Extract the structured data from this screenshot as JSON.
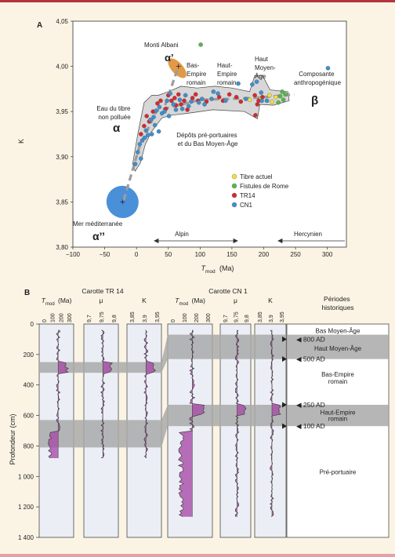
{
  "colors": {
    "page_bg": "#fbf4e5",
    "panel_bg": "#ffffff",
    "purple": "#a64ca6",
    "cyan": "#5ec8dc",
    "gray_band": "#a9a9a9",
    "blue_ellipse": "#4a90d9",
    "orange_ellipse": "#e09a48",
    "dashed": "#a0a0a0",
    "yellow": "#f2e23a",
    "green": "#55b848",
    "red": "#d8272f",
    "blue": "#3f8fd0"
  },
  "panel_a": {
    "label": "A",
    "chart_data": {
      "type": "scatter",
      "xlabel_main": "T",
      "xlabel_sub": "mod",
      "xlabel_unit": "(Ma)",
      "ylabel": "K",
      "xlim": [
        -100,
        330
      ],
      "ylim": [
        3.8,
        4.05
      ],
      "x_ticks": [
        "−100",
        "−50",
        "0",
        "50",
        "100",
        "150",
        "200",
        "250",
        "300"
      ],
      "x_tick_values": [
        -100,
        -50,
        0,
        50,
        100,
        150,
        200,
        250,
        300
      ],
      "y_ticks": [
        "3,80",
        "3,85",
        "3,90",
        "3,95",
        "4,00",
        "4,05"
      ],
      "y_tick_values": [
        3.8,
        3.85,
        3.9,
        3.95,
        4.0,
        4.05
      ],
      "legend": [
        {
          "label": "Tibre actuel",
          "color": "#f2e23a"
        },
        {
          "label": "Fistules de Rome",
          "color": "#55b848"
        },
        {
          "label": "TR14",
          "color": "#d8272f"
        },
        {
          "label": "CN1",
          "color": "#3f8fd0"
        }
      ],
      "series": [
        {
          "name": "Tibre actuel",
          "color": "#f2e23a",
          "points": [
            [
              178,
              3.963
            ],
            [
              196,
              3.965
            ],
            [
              209,
              3.968
            ],
            [
              219,
              3.966
            ],
            [
              213,
              3.961
            ]
          ]
        },
        {
          "name": "Fistules de Rome",
          "color": "#55b848",
          "points": [
            [
              101,
              4.024
            ],
            [
              229,
              3.972
            ],
            [
              234,
              3.969
            ],
            [
              231,
              3.963
            ],
            [
              223,
              3.96
            ],
            [
              226,
              3.967
            ]
          ]
        },
        {
          "name": "TR14",
          "color": "#d8272f",
          "points": [
            [
              7,
              3.925
            ],
            [
              12,
              3.934
            ],
            [
              16,
              3.945
            ],
            [
              20,
              3.939
            ],
            [
              33,
              3.959
            ],
            [
              38,
              3.962
            ],
            [
              46,
              3.953
            ],
            [
              50,
              3.968
            ],
            [
              55,
              3.962
            ],
            [
              60,
              3.965
            ],
            [
              66,
              3.969
            ],
            [
              70,
              3.958
            ],
            [
              75,
              3.962
            ],
            [
              80,
              3.952
            ],
            [
              88,
              3.965
            ],
            [
              93,
              3.969
            ],
            [
              97,
              3.962
            ],
            [
              110,
              3.961
            ],
            [
              130,
              3.966
            ],
            [
              136,
              3.962
            ],
            [
              146,
              3.969
            ],
            [
              157,
              3.966
            ],
            [
              164,
              3.961
            ],
            [
              186,
              3.968
            ],
            [
              192,
              3.962
            ],
            [
              198,
              3.966
            ],
            [
              187,
              3.946
            ],
            [
              190,
              3.958
            ],
            [
              26,
              3.95
            ],
            [
              62,
              3.957
            ]
          ]
        },
        {
          "name": "CN1",
          "color": "#3f8fd0",
          "points": [
            [
              -2,
              3.892
            ],
            [
              2,
              3.905
            ],
            [
              5,
              3.914
            ],
            [
              9,
              3.918
            ],
            [
              15,
              3.929
            ],
            [
              18,
              3.924
            ],
            [
              22,
              3.941
            ],
            [
              27,
              3.944
            ],
            [
              31,
              3.951
            ],
            [
              29,
              3.935
            ],
            [
              35,
              3.928
            ],
            [
              40,
              3.948
            ],
            [
              44,
              3.95
            ],
            [
              48,
              3.962
            ],
            [
              53,
              3.97
            ],
            [
              58,
              3.958
            ],
            [
              62,
              3.952
            ],
            [
              68,
              3.963
            ],
            [
              72,
              3.953
            ],
            [
              77,
              3.968
            ],
            [
              82,
              3.956
            ],
            [
              86,
              3.961
            ],
            [
              98,
              3.96
            ],
            [
              103,
              3.964
            ],
            [
              107,
              3.958
            ],
            [
              118,
              3.964
            ],
            [
              128,
              3.97
            ],
            [
              140,
              3.962
            ],
            [
              160,
              3.981
            ],
            [
              172,
              3.964
            ],
            [
              182,
              3.98
            ],
            [
              189,
              3.983
            ],
            [
              196,
              3.971
            ],
            [
              197,
              3.962
            ],
            [
              205,
              3.962
            ],
            [
              301,
              3.998
            ],
            [
              7,
              3.898
            ],
            [
              13,
              3.921
            ],
            [
              24,
              3.925
            ],
            [
              36,
              3.955
            ],
            [
              51,
              3.945
            ],
            [
              121,
              3.972
            ]
          ]
        }
      ],
      "ellipses": [
        {
          "cx": -22,
          "cy": 3.85,
          "rx_data": 25,
          "ry_data": 0.018,
          "color": "#4a90d9"
        },
        {
          "cx": 64,
          "cy": 3.998,
          "rx_data": 9,
          "ry_data": 0.0135,
          "color": "#e09a48"
        }
      ],
      "crosses": [
        [
          -22,
          3.85
        ],
        [
          66,
          4.0
        ]
      ],
      "dashed_path": [
        [
          -20,
          3.852
        ],
        [
          5,
          3.912
        ],
        [
          32,
          3.951
        ],
        [
          100,
          3.963
        ],
        [
          185,
          3.965
        ],
        [
          248,
          3.969
        ]
      ],
      "dashed_branch": [
        [
          45,
          3.957
        ],
        [
          64,
          3.996
        ]
      ],
      "annotations": {
        "monti_albani": "Monti Albani",
        "alpha_prime": "α’",
        "bas_empire": [
          "Bas-",
          "Empire",
          "romain"
        ],
        "haut_empire": [
          "Haut-",
          "Empire",
          "romain"
        ],
        "haut_moyen_age": [
          "Haut",
          "Moyen-",
          "Âge"
        ],
        "composante": [
          "Composante",
          "anthropogénique"
        ],
        "beta": "β",
        "eau_tibre": [
          "Eau du tibre",
          "non polluée"
        ],
        "alpha": "α",
        "depots": [
          "Dépôts pré-portuaires",
          "et du Bas Moyen-Âge"
        ],
        "mer": "Mer méditerranée",
        "alpha_dprime": "α’’",
        "alpin": "Alpin",
        "hercynien": "Hercynien"
      }
    }
  },
  "panel_b": {
    "label": "B",
    "carotte_tr14": "Carotte TR 14",
    "carotte_cn1": "Carotte CN 1",
    "periodes_title": [
      "Périodes",
      "historiques"
    ],
    "ylabel": "Profondeur (cm)",
    "depth_ticks": [
      "0",
      "200",
      "400",
      "600",
      "800",
      "1 000",
      "1 200",
      "1 400"
    ],
    "depth_tick_values": [
      0,
      200,
      400,
      600,
      800,
      1000,
      1200,
      1400
    ],
    "col_headers": [
      {
        "main": "T",
        "sub": "mod",
        "unit": "(Ma)"
      },
      {
        "main": "μ"
      },
      {
        "main": "K"
      },
      {
        "main": "T",
        "sub": "mod",
        "unit": "(Ma)"
      },
      {
        "main": "μ"
      },
      {
        "main": "K"
      }
    ],
    "tmod_ticks": [
      "0",
      "100",
      "200",
      "300"
    ],
    "mu_ticks": [
      "9,7",
      "9,75",
      "9,8"
    ],
    "k_ticks": [
      "3,85",
      "3,9",
      "3,95"
    ],
    "tr14_bands": [
      [
        250,
        320
      ],
      [
        630,
        810
      ]
    ],
    "cn1_bands": [
      [
        70,
        230
      ],
      [
        530,
        670
      ]
    ],
    "tr14_max_depth": 880,
    "cn1_max_depth": 1265,
    "periods": [
      {
        "label": "Bas Moyen-Âge",
        "y": 45
      },
      {
        "label": "Haut Moyen-Âge",
        "y": 160
      },
      {
        "label": "Bas-Empire",
        "y": 330
      },
      {
        "label": "romain",
        "y": 375
      },
      {
        "label": "Haut-Empire",
        "y": 580
      },
      {
        "label": "romain",
        "y": 620
      },
      {
        "label": "Pré-portuaire",
        "y": 970
      }
    ],
    "age_markers": [
      {
        "label": "800 AD",
        "depth": 100
      },
      {
        "label": "500 AD",
        "depth": 230
      },
      {
        "label": "250 AD",
        "depth": 530
      },
      {
        "label": "100 AD",
        "depth": 670
      }
    ]
  }
}
